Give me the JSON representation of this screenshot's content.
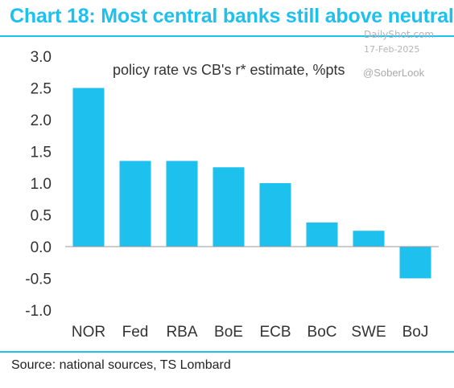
{
  "header": {
    "title": "Chart 18: Most central banks still above neutral",
    "watermark_logo": "DailyShot.com",
    "watermark_date": "17-Feb-2025",
    "handle": "@SoberLook"
  },
  "footer": {
    "source": "Source: national sources, TS Lombard"
  },
  "colors": {
    "accent": "#1ec0ee",
    "bar": "#1ec0ee"
  },
  "chart_data": {
    "type": "bar",
    "title": "policy rate vs CB's r* estimate, %pts",
    "categories": [
      "NOR",
      "Fed",
      "RBA",
      "BoE",
      "ECB",
      "BoC",
      "SWE",
      "BoJ"
    ],
    "values": [
      2.5,
      1.35,
      1.35,
      1.25,
      1.0,
      0.38,
      0.25,
      -0.5
    ],
    "ylim": [
      -1.0,
      3.0
    ],
    "yticks": [
      "3.0",
      "2.5",
      "2.0",
      "1.5",
      "1.0",
      "0.5",
      "0.0",
      "-0.5",
      "-1.0"
    ],
    "xlabel": "",
    "ylabel": "",
    "grid": false,
    "legend": "none"
  }
}
